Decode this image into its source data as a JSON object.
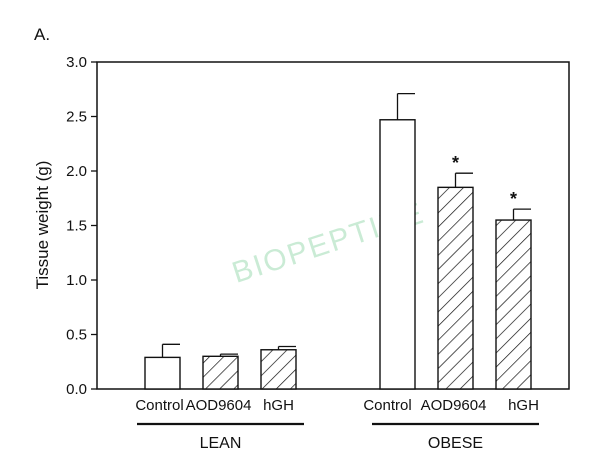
{
  "panel_label": "A.",
  "watermark_text": "BIOPEPTIDE",
  "colors": {
    "bar_outline": "#111111",
    "axis": "#111111",
    "watermark": "#9fdcb3"
  },
  "chart_data": {
    "type": "bar",
    "ylabel": "Tissue weight (g)",
    "xlabel": "",
    "ylim": [
      0,
      3.0
    ],
    "yticks": [
      0.0,
      0.5,
      1.0,
      1.5,
      2.0,
      2.5,
      3.0
    ],
    "ytick_labels": [
      "0.0",
      "0.5",
      "1.0",
      "1.5",
      "2.0",
      "2.5",
      "3.0"
    ],
    "grid": false,
    "groups": [
      {
        "name": "LEAN",
        "bars": [
          {
            "label": "Control",
            "value": 0.29,
            "error": 0.12,
            "pattern": "open",
            "significant": false
          },
          {
            "label": "AOD9604",
            "value": 0.3,
            "error": 0.02,
            "pattern": "hatched",
            "significant": false
          },
          {
            "label": "hGH",
            "value": 0.36,
            "error": 0.03,
            "pattern": "hatched",
            "significant": false
          }
        ]
      },
      {
        "name": "OBESE",
        "bars": [
          {
            "label": "Control",
            "value": 2.47,
            "error": 0.24,
            "pattern": "open",
            "significant": false
          },
          {
            "label": "AOD9604",
            "value": 1.85,
            "error": 0.13,
            "pattern": "hatched",
            "significant": true
          },
          {
            "label": "hGH",
            "value": 1.55,
            "error": 0.1,
            "pattern": "hatched",
            "significant": true
          }
        ]
      }
    ],
    "significance_marker": "*"
  }
}
